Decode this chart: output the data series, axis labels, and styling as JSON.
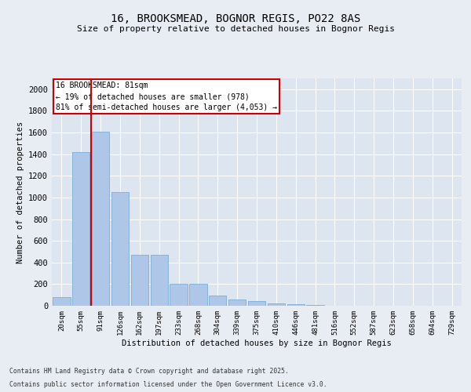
{
  "title": "16, BROOKSMEAD, BOGNOR REGIS, PO22 8AS",
  "subtitle": "Size of property relative to detached houses in Bognor Regis",
  "xlabel": "Distribution of detached houses by size in Bognor Regis",
  "ylabel": "Number of detached properties",
  "categories": [
    "20sqm",
    "55sqm",
    "91sqm",
    "126sqm",
    "162sqm",
    "197sqm",
    "233sqm",
    "268sqm",
    "304sqm",
    "339sqm",
    "375sqm",
    "410sqm",
    "446sqm",
    "481sqm",
    "516sqm",
    "552sqm",
    "587sqm",
    "623sqm",
    "658sqm",
    "694sqm",
    "729sqm"
  ],
  "values": [
    80,
    1420,
    1610,
    1050,
    470,
    470,
    205,
    205,
    95,
    60,
    40,
    25,
    15,
    5,
    0,
    0,
    0,
    0,
    0,
    0,
    0
  ],
  "bar_color": "#aec6e8",
  "bar_edge_color": "#7aadd4",
  "vline_color": "#cc0000",
  "annotation_title": "16 BROOKSMEAD: 81sqm",
  "annotation_line2": "← 19% of detached houses are smaller (978)",
  "annotation_line3": "81% of semi-detached houses are larger (4,053) →",
  "annotation_box_edgecolor": "#cc0000",
  "ylim": [
    0,
    2100
  ],
  "yticks": [
    0,
    200,
    400,
    600,
    800,
    1000,
    1200,
    1400,
    1600,
    1800,
    2000
  ],
  "footer_line1": "Contains HM Land Registry data © Crown copyright and database right 2025.",
  "footer_line2": "Contains public sector information licensed under the Open Government Licence v3.0.",
  "background_color": "#e8edf4",
  "plot_bg_color": "#dce5f0"
}
